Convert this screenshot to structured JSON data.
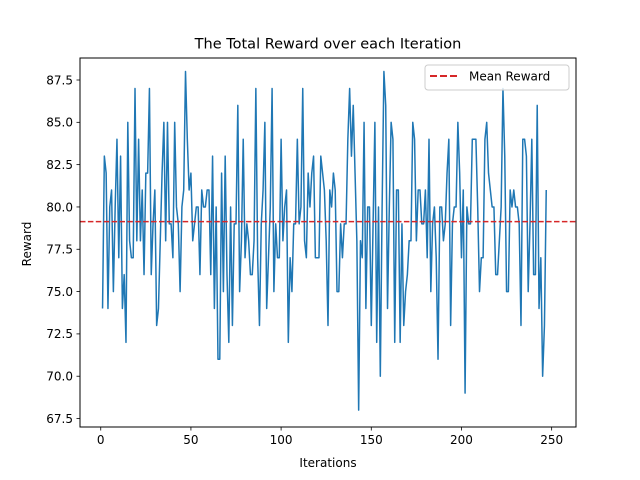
{
  "chart_data": {
    "type": "line",
    "title": "The Total Reward over each Iteration",
    "xlabel": "Iterations",
    "ylabel": "Reward",
    "xlim": [
      -11.5,
      263.5
    ],
    "ylim": [
      67,
      88.8
    ],
    "xticks": [
      0,
      50,
      100,
      150,
      200,
      250
    ],
    "yticks": [
      67.5,
      70.0,
      72.5,
      75.0,
      77.5,
      80.0,
      82.5,
      85.0,
      87.5
    ],
    "ytick_labels": [
      "67.5",
      "70.0",
      "72.5",
      "75.0",
      "77.5",
      "80.0",
      "82.5",
      "85.0",
      "87.5"
    ],
    "xtick_labels": [
      "0",
      "50",
      "100",
      "150",
      "200",
      "250"
    ],
    "series": [
      {
        "color": "#1f77b4",
        "x_start": 1,
        "values": [
          74,
          83,
          82,
          74,
          80,
          81,
          75,
          80,
          84,
          77,
          83,
          74,
          76,
          72,
          85,
          78,
          77,
          77,
          87,
          78,
          84,
          78,
          81,
          76,
          82,
          82,
          87,
          76,
          79,
          81,
          73,
          74,
          78,
          82,
          85,
          78,
          85,
          79,
          79,
          77,
          85,
          80,
          79,
          75,
          80,
          81,
          88,
          84,
          81,
          82,
          78,
          79,
          80,
          80,
          76,
          81,
          80,
          80,
          81,
          81,
          76,
          83,
          74,
          80,
          71,
          71,
          82,
          75,
          83,
          76,
          72,
          80,
          73,
          79,
          79,
          86,
          75,
          78,
          84,
          77,
          79,
          78,
          76,
          76,
          78,
          87,
          77,
          73,
          79,
          81,
          85,
          74,
          77,
          80,
          87,
          75,
          79,
          77,
          77,
          84,
          78,
          80,
          81,
          72,
          77,
          75,
          79,
          79,
          84,
          79,
          80,
          87,
          78,
          77,
          82,
          80,
          82,
          83,
          77,
          77,
          77,
          83,
          82,
          81,
          78,
          73,
          81,
          80,
          82,
          81,
          75,
          75,
          79,
          77,
          79,
          79,
          84,
          87,
          83,
          86,
          82,
          78,
          68,
          78,
          77,
          85,
          74,
          80,
          80,
          73,
          79,
          85,
          72,
          80,
          70,
          80,
          88,
          86,
          74,
          80,
          85,
          84,
          72,
          81,
          81,
          72,
          79,
          73,
          75,
          76,
          78,
          78,
          85,
          84,
          78,
          81,
          81,
          79,
          79,
          81,
          77,
          84,
          75,
          79,
          80,
          77,
          71,
          80,
          80,
          78,
          79,
          82,
          84,
          73,
          79,
          80,
          80,
          85,
          82,
          77,
          81,
          69,
          80,
          79,
          79,
          84,
          84,
          84,
          80,
          75,
          77,
          77,
          84,
          85,
          82,
          81,
          80,
          80,
          76,
          76,
          78,
          80,
          87,
          83,
          75,
          75,
          81,
          80,
          81,
          80,
          80,
          79,
          73,
          84,
          84,
          83,
          75,
          79,
          84,
          76,
          76,
          86,
          74,
          77,
          70,
          73,
          81
        ]
      }
    ],
    "hlines": [
      {
        "name": "Mean Reward",
        "y": 79.13,
        "color": "#d62728",
        "dash": "dashed"
      }
    ],
    "legend_position": "top-right",
    "grid": false
  }
}
